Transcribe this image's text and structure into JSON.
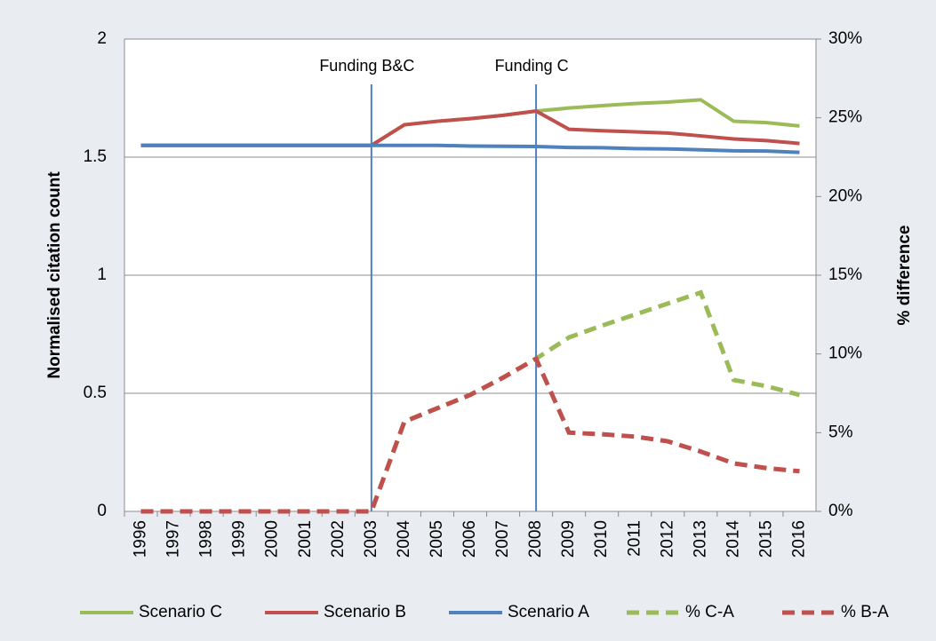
{
  "chart_data": {
    "type": "line",
    "categories": [
      "1996",
      "1997",
      "1998",
      "1999",
      "2000",
      "2001",
      "2002",
      "2003",
      "2004",
      "2005",
      "2006",
      "2007",
      "2008",
      "2009",
      "2010",
      "2011",
      "2012",
      "2013",
      "2014",
      "2015",
      "2016"
    ],
    "ylabel": "Normalised citation count",
    "y2label": "% difference",
    "ylim": [
      0,
      2
    ],
    "yticks": [
      0,
      0.5,
      1,
      1.5,
      2
    ],
    "y2lim": [
      0,
      30
    ],
    "y2ticks": [
      {
        "value": 0,
        "label": "0%"
      },
      {
        "value": 5,
        "label": "5%"
      },
      {
        "value": 10,
        "label": "10%"
      },
      {
        "value": 15,
        "label": "15%"
      },
      {
        "value": 20,
        "label": "20%"
      },
      {
        "value": 25,
        "label": "25%"
      },
      {
        "value": 30,
        "label": "30%"
      }
    ],
    "grid": true,
    "legend": "bottom",
    "series": [
      {
        "name": "Scenario C",
        "color": "#9bbb59",
        "dashed": false,
        "values": [
          1.55,
          1.55,
          1.55,
          1.55,
          1.55,
          1.55,
          1.55,
          1.55,
          1.637,
          1.652,
          1.663,
          1.677,
          1.695,
          1.708,
          1.718,
          1.727,
          1.733,
          1.743,
          1.652,
          1.646,
          1.632
        ]
      },
      {
        "name": "Scenario B",
        "color": "#c0504d",
        "dashed": false,
        "values": [
          1.55,
          1.55,
          1.55,
          1.55,
          1.55,
          1.55,
          1.55,
          1.55,
          1.637,
          1.652,
          1.663,
          1.677,
          1.695,
          1.618,
          1.612,
          1.607,
          1.602,
          1.59,
          1.577,
          1.57,
          1.558
        ]
      },
      {
        "name": "Scenario A",
        "color": "#4f81bd",
        "dashed": false,
        "values": [
          1.55,
          1.55,
          1.55,
          1.55,
          1.55,
          1.55,
          1.55,
          1.55,
          1.55,
          1.55,
          1.547,
          1.546,
          1.545,
          1.541,
          1.54,
          1.536,
          1.535,
          1.531,
          1.527,
          1.526,
          1.52
        ]
      },
      {
        "name": "% C-A",
        "color": "#9bbb59",
        "dashed": true,
        "axis": "y2",
        "values": [
          0,
          0,
          0,
          0,
          0,
          0,
          0,
          0,
          5.7,
          6.55,
          7.4,
          8.5,
          9.7,
          11.05,
          11.8,
          12.5,
          13.2,
          13.9,
          8.35,
          7.95,
          7.4
        ]
      },
      {
        "name": "% B-A",
        "color": "#c0504d",
        "dashed": true,
        "axis": "y2",
        "values": [
          0,
          0,
          0,
          0,
          0,
          0,
          0,
          0,
          5.7,
          6.55,
          7.4,
          8.5,
          9.7,
          5.0,
          4.9,
          4.75,
          4.45,
          3.8,
          3.05,
          2.75,
          2.55
        ]
      }
    ],
    "annotations": [
      {
        "text": "Funding B&C",
        "x": "2003"
      },
      {
        "text": "Funding C",
        "x": "2008"
      }
    ]
  }
}
